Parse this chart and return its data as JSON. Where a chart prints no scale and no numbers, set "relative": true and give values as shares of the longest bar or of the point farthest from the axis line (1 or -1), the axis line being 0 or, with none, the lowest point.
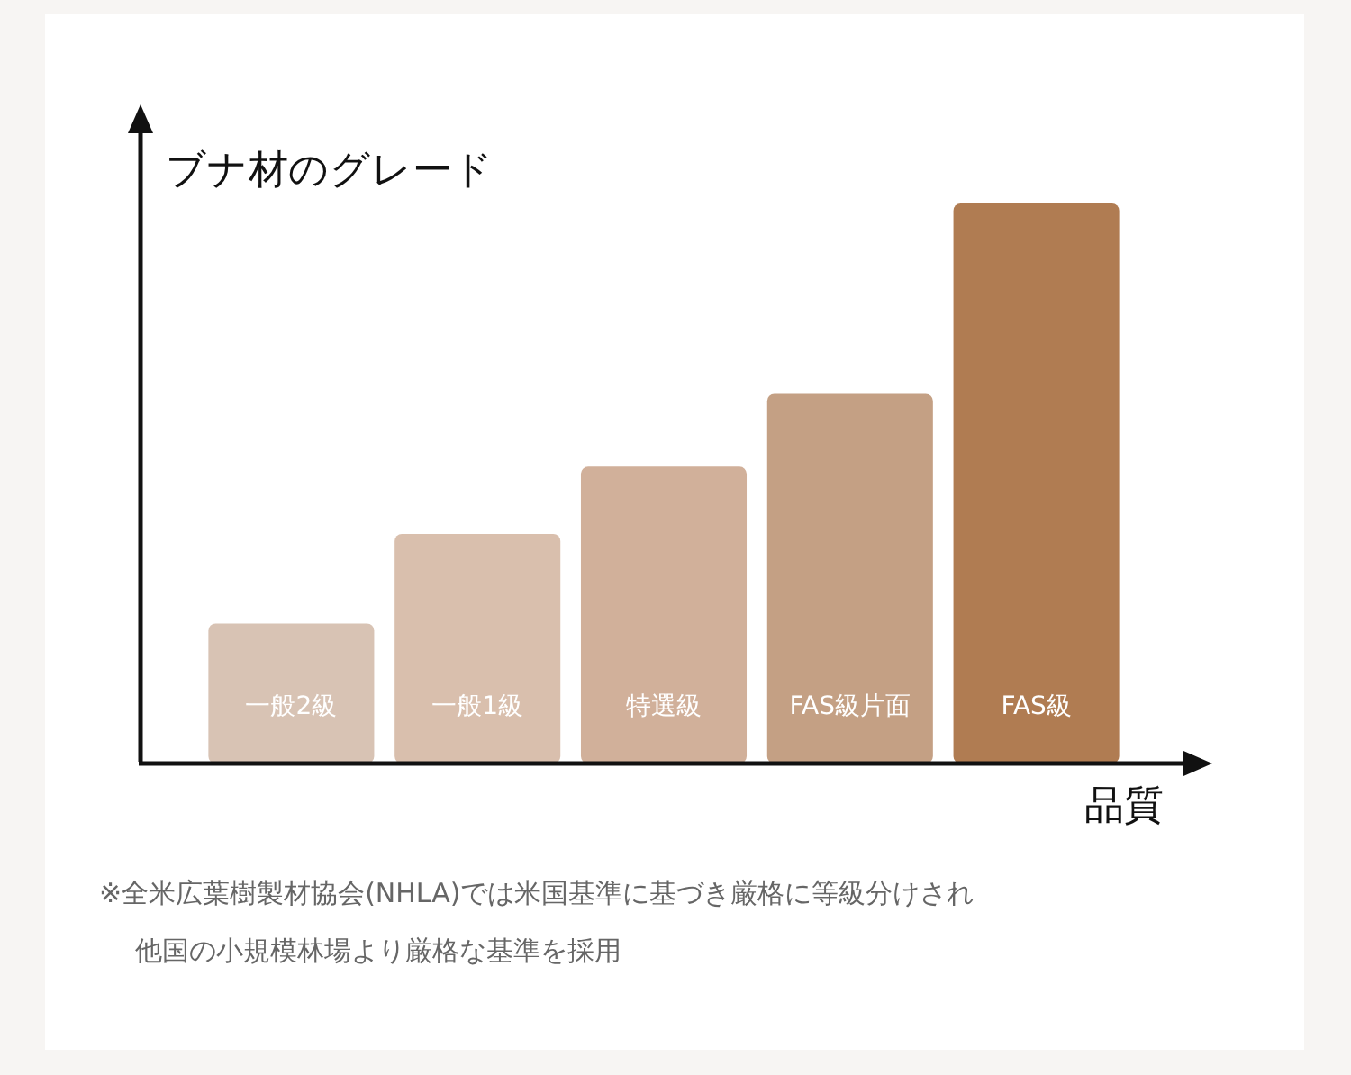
{
  "chart_data": {
    "type": "bar",
    "relative": true,
    "ylabel": "ブナ材のグレード",
    "xlabel": "品質",
    "categories": [
      "一般2級",
      "一般1級",
      "特選級",
      "FAS級片面",
      "FAS級"
    ],
    "values": [
      0.25,
      0.41,
      0.53,
      0.66,
      1
    ],
    "colors": [
      "#d8c3b4",
      "#d9bfad",
      "#d1b09a",
      "#c4a084",
      "#b07c52"
    ],
    "annotations": [
      "※全米広葉樹製材協会(NHLA)では米国基準に基づき厳格に等級分けされ",
      "他国の小規模林場より厳格な基準を採用"
    ],
    "legend": false
  }
}
